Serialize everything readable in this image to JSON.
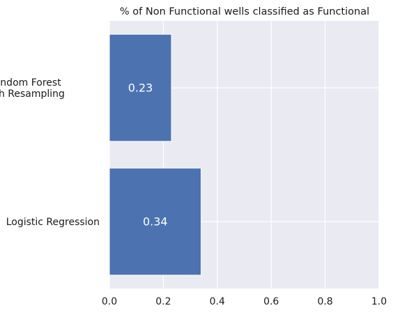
{
  "chart_data": {
    "type": "bar",
    "orientation": "horizontal",
    "title": "% of Non Functional wells classified as Functional",
    "categories": [
      {
        "lines": [
          "Logistic Regression"
        ]
      },
      {
        "lines": [
          "Random Forest",
          "with Resampling"
        ]
      }
    ],
    "values": [
      0.34,
      0.23
    ],
    "data_labels": [
      "0.34",
      "0.23"
    ],
    "xlim": [
      0,
      1
    ],
    "x_ticks": [
      0.0,
      0.2,
      0.4,
      0.6,
      0.8,
      1.0
    ],
    "x_tick_labels": [
      "0.0",
      "0.2",
      "0.4",
      "0.6",
      "0.8",
      "1.0"
    ],
    "grid": true,
    "colors": {
      "bar": "#4c72b0",
      "plot_background": "#eaeaf2",
      "grid": "#ffffff"
    }
  }
}
